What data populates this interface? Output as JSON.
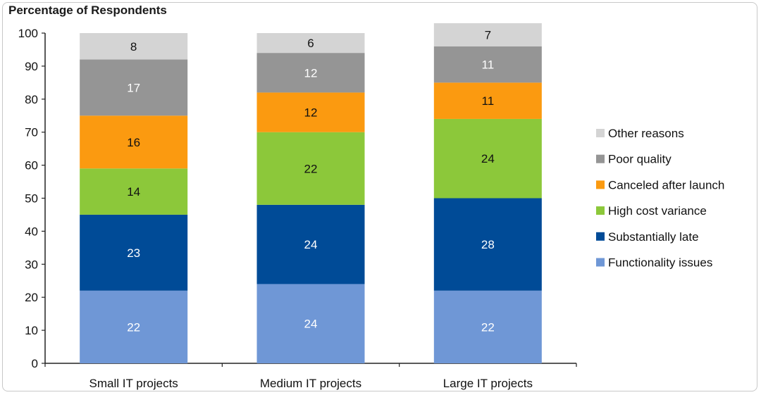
{
  "chart_data": {
    "type": "bar",
    "stacked": true,
    "title": "Percentage of Respondents",
    "xlabel": "",
    "ylabel": "",
    "ylim": [
      0,
      100
    ],
    "yticks": [
      0,
      10,
      20,
      30,
      40,
      50,
      60,
      70,
      80,
      90,
      100
    ],
    "grid": false,
    "legend_position": "right",
    "categories": [
      "Small IT projects",
      "Medium IT projects",
      "Large IT projects"
    ],
    "series": [
      {
        "name": "Functionality issues",
        "color": "#6f97d6",
        "label_color": "#ffffff",
        "values": [
          22,
          24,
          22
        ]
      },
      {
        "name": "Substantially late",
        "color": "#004b97",
        "label_color": "#ffffff",
        "values": [
          23,
          24,
          28
        ]
      },
      {
        "name": "High cost variance",
        "color": "#8cc83a",
        "label_color": "#111111",
        "values": [
          14,
          22,
          24
        ]
      },
      {
        "name": "Canceled after launch",
        "color": "#fb9a10",
        "label_color": "#111111",
        "values": [
          16,
          12,
          11
        ]
      },
      {
        "name": "Poor quality",
        "color": "#959595",
        "label_color": "#ffffff",
        "values": [
          17,
          12,
          11
        ]
      },
      {
        "name": "Other reasons",
        "color": "#d4d4d4",
        "label_color": "#111111",
        "values": [
          8,
          6,
          7
        ]
      }
    ]
  }
}
